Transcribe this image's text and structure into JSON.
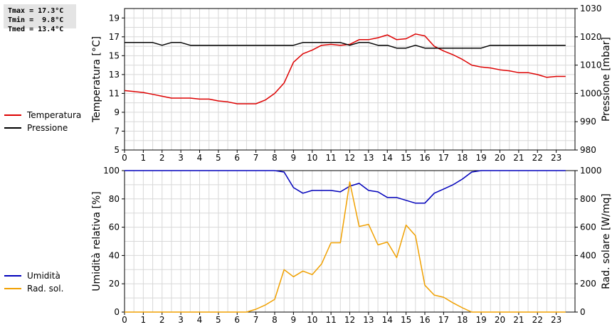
{
  "stats": [
    {
      "label": "Tmax =",
      "value": "17.3°C"
    },
    {
      "label": "Tmin =",
      "value": " 9.8°C"
    },
    {
      "label": "Tmed =",
      "value": "13.4°C"
    }
  ],
  "colors": {
    "temperature": "#dd0000",
    "pressure": "#000000",
    "humidity": "#0000bb",
    "solar": "#f0a000",
    "grid": "#d8d8d8"
  },
  "chart_data": [
    {
      "type": "line",
      "x_ticks": [
        0,
        1,
        2,
        3,
        4,
        5,
        6,
        7,
        8,
        9,
        10,
        11,
        12,
        13,
        14,
        15,
        16,
        17,
        18,
        19,
        20,
        21,
        22,
        23
      ],
      "xlim": [
        0,
        24
      ],
      "y_left": {
        "label": "Temperatura [°C]",
        "lim": [
          5,
          20
        ],
        "ticks": [
          5,
          7,
          9,
          11,
          13,
          15,
          17,
          19
        ]
      },
      "y_right": {
        "label": "Pressione [mbar]",
        "lim": [
          980,
          1030
        ],
        "ticks": [
          980,
          990,
          1000,
          1010,
          1020,
          1030
        ]
      },
      "grid": true,
      "series": [
        {
          "name": "Temperatura",
          "axis": "left",
          "color_key": "temperature",
          "x": [
            0,
            0.5,
            1,
            1.5,
            2,
            2.5,
            3,
            3.5,
            4,
            4.5,
            5,
            5.5,
            6,
            6.5,
            7,
            7.5,
            8,
            8.5,
            9,
            9.5,
            10,
            10.5,
            11,
            11.5,
            12,
            12.5,
            13,
            13.5,
            14,
            14.5,
            15,
            15.5,
            16,
            16.5,
            17,
            17.5,
            18,
            18.5,
            19,
            19.5,
            20,
            20.5,
            21,
            21.5,
            22,
            22.5,
            23,
            23.5
          ],
          "y": [
            11.3,
            11.2,
            11.1,
            10.9,
            10.7,
            10.5,
            10.5,
            10.5,
            10.4,
            10.4,
            10.2,
            10.1,
            9.9,
            9.9,
            9.9,
            10.3,
            11.0,
            12.1,
            14.3,
            15.2,
            15.6,
            16.1,
            16.2,
            16.1,
            16.2,
            16.7,
            16.7,
            16.9,
            17.2,
            16.7,
            16.8,
            17.3,
            17.1,
            16.0,
            15.5,
            15.1,
            14.6,
            14.0,
            13.8,
            13.7,
            13.5,
            13.4,
            13.2,
            13.2,
            13.0,
            12.7,
            12.8,
            12.8
          ]
        },
        {
          "name": "Pressione",
          "axis": "right",
          "color_key": "pressure",
          "x": [
            0,
            0.5,
            1,
            1.5,
            2,
            2.5,
            3,
            3.5,
            4,
            4.5,
            5,
            5.5,
            6,
            6.5,
            7,
            7.5,
            8,
            8.5,
            9,
            9.5,
            10,
            10.5,
            11,
            11.5,
            12,
            12.5,
            13,
            13.5,
            14,
            14.5,
            15,
            15.5,
            16,
            16.5,
            17,
            17.5,
            18,
            18.5,
            19,
            19.5,
            20,
            20.5,
            21,
            21.5,
            22,
            22.5,
            23,
            23.5
          ],
          "y": [
            1018,
            1018,
            1018,
            1018,
            1017,
            1018,
            1018,
            1017,
            1017,
            1017,
            1017,
            1017,
            1017,
            1017,
            1017,
            1017,
            1017,
            1017,
            1017,
            1018,
            1018,
            1018,
            1018,
            1018,
            1017,
            1018,
            1018,
            1017,
            1017,
            1016,
            1016,
            1017,
            1016,
            1016,
            1016,
            1016,
            1016,
            1016,
            1016,
            1017,
            1017,
            1017,
            1017,
            1017,
            1017,
            1017,
            1017,
            1017
          ]
        }
      ]
    },
    {
      "type": "line",
      "x_ticks": [
        0,
        1,
        2,
        3,
        4,
        5,
        6,
        7,
        8,
        9,
        10,
        11,
        12,
        13,
        14,
        15,
        16,
        17,
        18,
        19,
        20,
        21,
        22,
        23
      ],
      "xlim": [
        0,
        24
      ],
      "y_left": {
        "label": "Umidità relativa [%]",
        "lim": [
          0,
          100
        ],
        "ticks": [
          0,
          20,
          40,
          60,
          80,
          100
        ]
      },
      "y_right": {
        "label": "Rad. solare [W/mq]",
        "lim": [
          0,
          1000
        ],
        "ticks": [
          0,
          200,
          400,
          600,
          800,
          1000
        ]
      },
      "grid": true,
      "series": [
        {
          "name": "Umidità",
          "axis": "left",
          "color_key": "humidity",
          "x": [
            0,
            0.5,
            1,
            1.5,
            2,
            2.5,
            3,
            3.5,
            4,
            4.5,
            5,
            5.5,
            6,
            6.5,
            7,
            7.5,
            8,
            8.5,
            9,
            9.5,
            10,
            10.5,
            11,
            11.5,
            12,
            12.5,
            13,
            13.5,
            14,
            14.5,
            15,
            15.5,
            16,
            16.5,
            17,
            17.5,
            18,
            18.5,
            19,
            19.5,
            20,
            20.5,
            21,
            21.5,
            22,
            22.5,
            23,
            23.5
          ],
          "y": [
            100,
            100,
            100,
            100,
            100,
            100,
            100,
            100,
            100,
            100,
            100,
            100,
            100,
            100,
            100,
            100,
            100,
            99,
            88,
            84,
            86,
            86,
            86,
            85,
            89,
            91,
            86,
            85,
            81,
            81,
            79,
            77,
            77,
            84,
            87,
            90,
            94,
            99,
            100,
            100,
            100,
            100,
            100,
            100,
            100,
            100,
            100,
            100
          ]
        },
        {
          "name": "Rad. sol.",
          "axis": "right",
          "color_key": "solar",
          "x": [
            0,
            0.5,
            1,
            1.5,
            2,
            2.5,
            3,
            3.5,
            4,
            4.5,
            5,
            5.5,
            6,
            6.5,
            7,
            7.5,
            8,
            8.5,
            9,
            9.5,
            10,
            10.5,
            11,
            11.5,
            12,
            12.5,
            13,
            13.5,
            14,
            14.5,
            15,
            15.5,
            16,
            16.5,
            17,
            17.5,
            18,
            18.5,
            19,
            19.5,
            20,
            20.5,
            21,
            21.5,
            22,
            22.5,
            23,
            23.5
          ],
          "y": [
            0,
            0,
            0,
            0,
            0,
            0,
            0,
            0,
            0,
            0,
            0,
            0,
            0,
            0,
            20,
            50,
            90,
            300,
            250,
            290,
            265,
            340,
            490,
            490,
            920,
            605,
            620,
            475,
            495,
            385,
            615,
            540,
            190,
            120,
            105,
            65,
            30,
            0,
            0,
            0,
            0,
            0,
            0,
            0,
            0,
            0,
            0,
            0
          ]
        }
      ]
    }
  ]
}
